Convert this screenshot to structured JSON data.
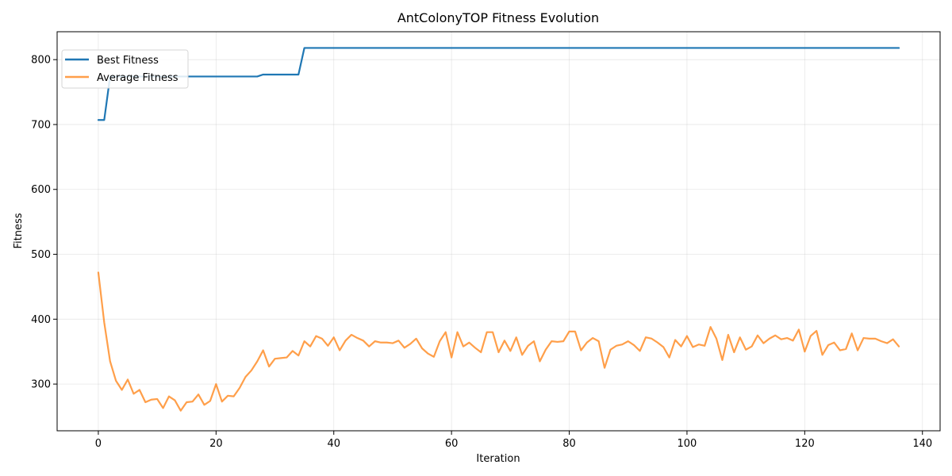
{
  "chart_data": {
    "type": "line",
    "title": "AntColonyTOP Fitness Evolution",
    "xlabel": "Iteration",
    "ylabel": "Fitness",
    "xlim": [
      -7,
      143
    ],
    "ylim": [
      228,
      843
    ],
    "xticks": [
      0,
      20,
      40,
      60,
      80,
      100,
      120,
      140
    ],
    "yticks": [
      300,
      400,
      500,
      600,
      700,
      800
    ],
    "grid": true,
    "legend_position": "top-left",
    "series": [
      {
        "name": "Best Fitness",
        "color": "#1f77b4",
        "values": [
          707,
          707,
          774,
          774,
          774,
          774,
          774,
          774,
          774,
          774,
          774,
          774,
          774,
          774,
          774,
          774,
          774,
          774,
          774,
          774,
          774,
          774,
          774,
          774,
          774,
          774,
          774,
          774,
          777,
          777,
          777,
          777,
          777,
          777,
          777,
          818,
          818,
          818,
          818,
          818,
          818,
          818,
          818,
          818,
          818,
          818,
          818,
          818,
          818,
          818,
          818,
          818,
          818,
          818,
          818,
          818,
          818,
          818,
          818,
          818,
          818,
          818,
          818,
          818,
          818,
          818,
          818,
          818,
          818,
          818,
          818,
          818,
          818,
          818,
          818,
          818,
          818,
          818,
          818,
          818,
          818,
          818,
          818,
          818,
          818,
          818,
          818,
          818,
          818,
          818,
          818,
          818,
          818,
          818,
          818,
          818,
          818,
          818,
          818,
          818,
          818,
          818,
          818,
          818,
          818,
          818,
          818,
          818,
          818,
          818,
          818,
          818,
          818,
          818,
          818,
          818,
          818,
          818,
          818,
          818,
          818,
          818,
          818,
          818,
          818,
          818,
          818,
          818,
          818,
          818,
          818,
          818,
          818,
          818,
          818,
          818,
          818
        ]
      },
      {
        "name": "Average Fitness",
        "color": "#ff7f0e",
        "values": [
          472,
          395,
          335,
          305,
          291,
          307,
          285,
          291,
          272,
          276,
          277,
          263,
          281,
          275,
          259,
          272,
          273,
          284,
          268,
          274,
          300,
          273,
          282,
          281,
          294,
          311,
          321,
          335,
          352,
          327,
          339,
          340,
          341,
          351,
          344,
          366,
          358,
          374,
          370,
          359,
          372,
          352,
          367,
          376,
          371,
          367,
          358,
          366,
          364,
          364,
          363,
          367,
          356,
          362,
          370,
          355,
          347,
          342,
          366,
          380,
          341,
          380,
          358,
          364,
          356,
          349,
          380,
          380,
          349,
          367,
          351,
          372,
          345,
          359,
          366,
          335,
          353,
          366,
          365,
          366,
          381,
          381,
          352,
          364,
          371,
          366,
          325,
          353,
          359,
          361,
          366,
          360,
          351,
          372,
          370,
          364,
          357,
          341,
          368,
          358,
          374,
          357,
          361,
          359,
          388,
          370,
          337,
          376,
          349,
          372,
          353,
          358,
          375,
          363,
          370,
          375,
          369,
          371,
          367,
          384,
          350,
          374,
          382,
          345,
          360,
          364,
          352,
          354,
          378,
          352,
          371,
          370,
          370,
          366,
          363,
          369,
          358
        ]
      }
    ]
  }
}
